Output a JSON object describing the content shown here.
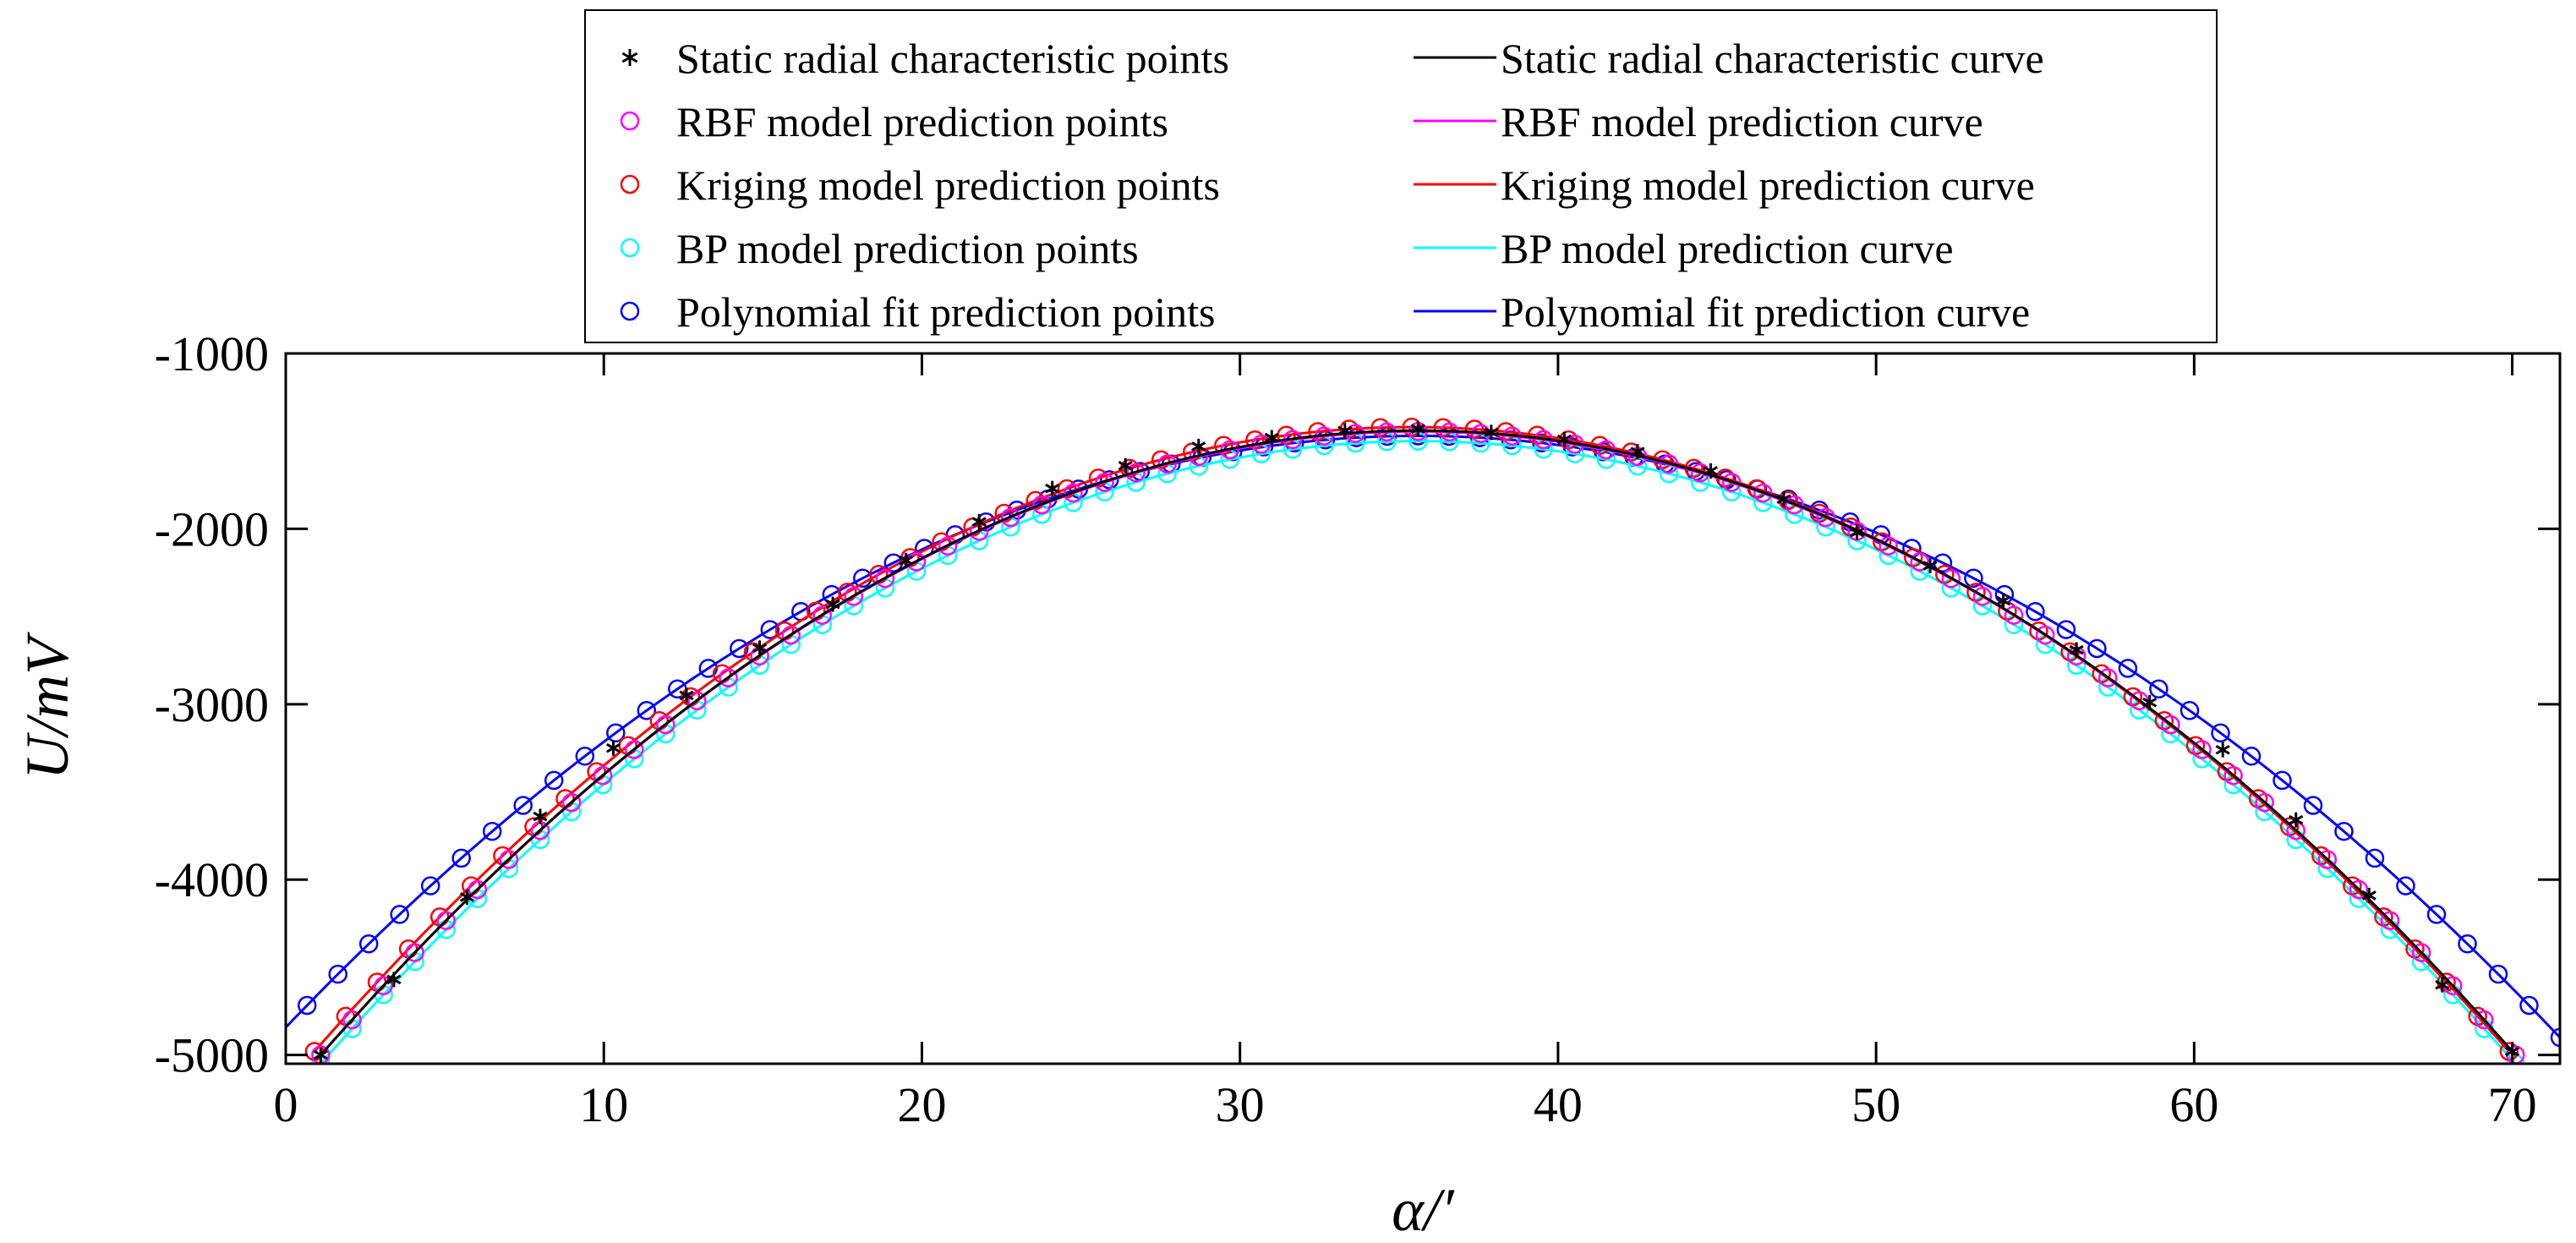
{
  "chart_data": {
    "type": "line",
    "title": "",
    "xlabel": "α/′",
    "ylabel": "U/mV",
    "xlim": [
      0,
      71.5
    ],
    "ylim": [
      -5050,
      -1000
    ],
    "xticks": [
      0,
      10,
      20,
      30,
      40,
      50,
      60,
      70
    ],
    "yticks": [
      -1000,
      -2000,
      -3000,
      -4000,
      -5000
    ],
    "xtick_labels": [
      "0",
      "10",
      "20",
      "30",
      "40",
      "50",
      "60",
      "70"
    ],
    "ytick_labels": [
      "-1000",
      "-2000",
      "-3000",
      "-4000",
      "-5000"
    ],
    "grid": false,
    "legend_position": "top",
    "static_points": {
      "x": [
        1.1,
        3.4,
        5.7,
        8.0,
        10.3,
        12.6,
        14.9,
        17.2,
        19.5,
        21.8,
        24.1,
        26.4,
        28.7,
        31.0,
        33.3,
        35.6,
        37.9,
        40.2,
        42.5,
        44.8,
        47.1,
        49.4,
        51.7,
        54.0,
        56.3,
        58.6,
        60.9,
        63.2,
        65.5,
        67.8,
        70.0
      ],
      "y": [
        -5000,
        -4570,
        -4100,
        -3640,
        -3250,
        -2950,
        -2680,
        -2430,
        -2180,
        -1960,
        -1770,
        -1640,
        -1530,
        -1480,
        -1440,
        -1430,
        -1450,
        -1490,
        -1560,
        -1670,
        -1830,
        -2020,
        -2210,
        -2410,
        -2690,
        -2990,
        -3260,
        -3660,
        -4090,
        -4600,
        -4980
      ]
    },
    "series": [
      {
        "name": "Static radial characteristic curve",
        "legend_points": "Static radial characteristic points",
        "color": "#000000",
        "marker": "star",
        "peak": -1440,
        "center": 35.6,
        "half_width": 34.5,
        "end_value": -5000
      },
      {
        "name": "RBF model prediction curve",
        "legend_points": "RBF model prediction points",
        "color": "#ff00ff",
        "marker": "circle",
        "peak": -1445,
        "center": 35.6,
        "half_width": 34.5,
        "end_value": -5000
      },
      {
        "name": "Kriging model prediction curve",
        "legend_points": "Kriging model prediction points",
        "color": "#ff0000",
        "marker": "circle",
        "peak": -1420,
        "center": 35.4,
        "half_width": 34.5,
        "end_value": -4980
      },
      {
        "name": "BP model prediction curve",
        "legend_points": "BP model prediction points",
        "color": "#00ffff",
        "marker": "circle",
        "peak": -1500,
        "center": 35.6,
        "half_width": 34.5,
        "end_value": -5050
      },
      {
        "name": "Polynomial fit prediction curve",
        "legend_points": "Polynomial fit prediction points",
        "color": "#0000ff",
        "marker": "circle",
        "peak": -1470,
        "center": 35.6,
        "half_width": 35.9,
        "end_value": -4900
      }
    ]
  }
}
